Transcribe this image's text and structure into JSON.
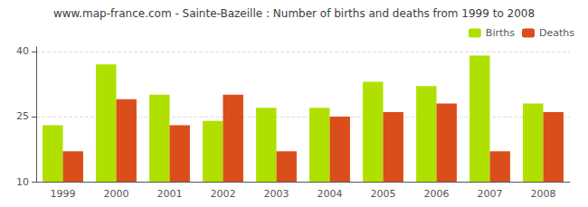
{
  "chart_data": {
    "type": "bar",
    "title": "www.map-france.com - Sainte-Bazeille : Number of births and deaths from 1999 to 2008",
    "categories": [
      "1999",
      "2000",
      "2001",
      "2002",
      "2003",
      "2004",
      "2005",
      "2006",
      "2007",
      "2008"
    ],
    "series": [
      {
        "name": "Births",
        "color": "#b0e000",
        "values": [
          23,
          37,
          30,
          24,
          27,
          27,
          33,
          32,
          39,
          28
        ]
      },
      {
        "name": "Deaths",
        "color": "#d94e1a",
        "values": [
          17,
          29,
          23,
          30,
          17,
          25,
          26,
          28,
          17,
          26
        ]
      }
    ],
    "ylim": [
      10,
      41
    ],
    "yticks": [
      10,
      25,
      40
    ],
    "grid": true,
    "legend": "upper right"
  }
}
